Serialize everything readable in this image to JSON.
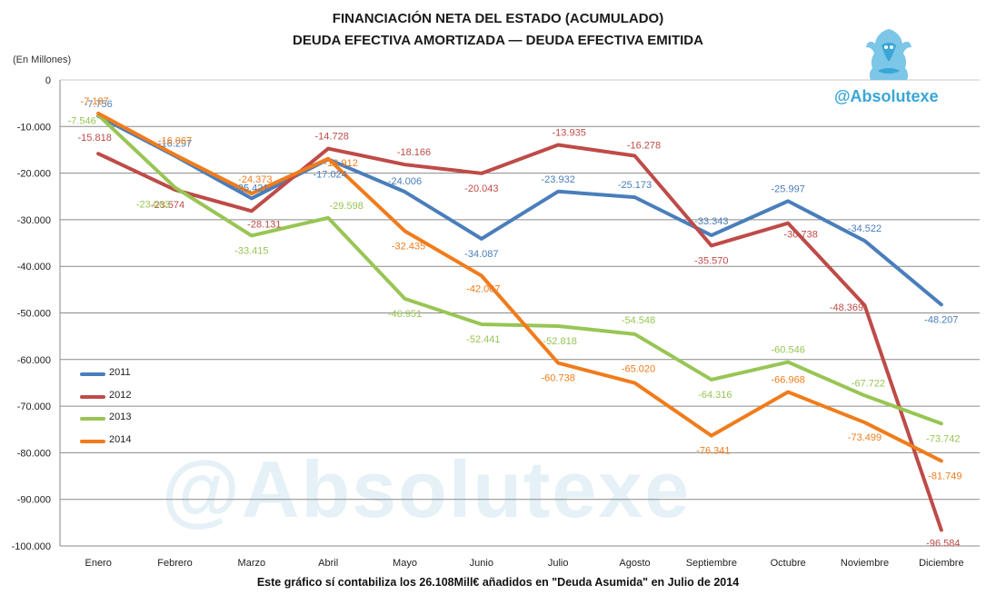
{
  "titles": {
    "line1": "FINANCIACIÓN NETA DEL ESTADO (ACUMULADO)",
    "line2": "DEUDA EFECTIVA AMORTIZADA — DEUDA EFECTIVA EMITIDA"
  },
  "unit_label": "(En Millones)",
  "footnote": "Este gráfico sí contabiliza los 26.108Mill€ añadidos en \"Deuda Asumida\" en Julio de 2014",
  "brand": {
    "handle": "@Absolutexe",
    "logo_icon": "griffin-logo-icon",
    "color": "#3aa6d6"
  },
  "watermark": "@Absolutexe",
  "chart_data": {
    "type": "line",
    "categories": [
      "Enero",
      "Febrero",
      "Marzo",
      "Abril",
      "Mayo",
      "Junio",
      "Julio",
      "Agosto",
      "Septiembre",
      "Octubre",
      "Noviembre",
      "Diciembre"
    ],
    "ylim": [
      -100,
      0
    ],
    "yticks": [
      0,
      -10,
      -20,
      -30,
      -40,
      -50,
      -60,
      -70,
      -80,
      -90,
      -100
    ],
    "ytick_labels": [
      "0",
      "-10.000",
      "-20.000",
      "-30.000",
      "-40.000",
      "-50.000",
      "-60.000",
      "-70.000",
      "-80.000",
      "-90.000",
      "-100.000"
    ],
    "grid": true,
    "legend_position": "left",
    "series": [
      {
        "name": "2011",
        "color": "#4a7ebb",
        "values": [
          -7.756,
          -16.297,
          -25.421,
          -17.024,
          -24.006,
          -34.087,
          -23.932,
          -25.173,
          -33.343,
          -25.997,
          -34.522,
          -48.207
        ],
        "labels": [
          "-7.756",
          "-16.297",
          "-25.421",
          "-17.024",
          "-24.006",
          "-34.087",
          "-23.932",
          "-25.173",
          "-33.343",
          "-25.997",
          "-34.522",
          "-48.207"
        ]
      },
      {
        "name": "2012",
        "color": "#be4b48",
        "values": [
          -15.818,
          -23.574,
          -28.131,
          -14.728,
          -18.166,
          -20.043,
          -13.935,
          -16.278,
          -35.57,
          -30.738,
          -48.369,
          -96.584
        ],
        "labels": [
          "-15.818",
          "-23.574",
          "-28.131",
          "-14.728",
          "-18.166",
          "-20.043",
          "-13.935",
          "-16.278",
          "-35.570",
          "-30.738",
          "-48.369",
          "-96.584"
        ]
      },
      {
        "name": "2013",
        "color": "#98c554",
        "values": [
          -7.546,
          -23.063,
          -33.415,
          -29.598,
          -46.951,
          -52.441,
          -52.818,
          -54.548,
          -64.316,
          -60.546,
          -67.722,
          -73.742
        ],
        "labels": [
          "-7.546",
          "-23.063",
          "-33.415",
          "-29.598",
          "-46.951",
          "-52.441",
          "-52.818",
          "-54.548",
          "-64.316",
          "-60.546",
          "-67.722",
          "-73.742"
        ]
      },
      {
        "name": "2014",
        "color": "#f07c1c",
        "values": [
          -7.187,
          -16.067,
          -24.373,
          -16.912,
          -32.435,
          -42.007,
          -60.738,
          -65.02,
          -76.341,
          -66.968,
          -73.499,
          -81.749
        ],
        "labels": [
          "-7.187",
          "-16.067",
          "-24.373",
          "-16.912",
          "-32.435",
          "-42.007",
          "-60.738",
          "-65.020",
          "-76.341",
          "-66.968",
          "-73.499",
          "-81.749"
        ]
      }
    ]
  }
}
